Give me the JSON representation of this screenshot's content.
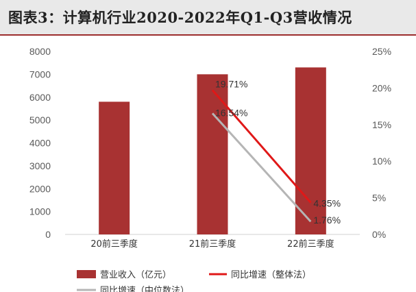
{
  "header": {
    "title": "图表3：计算机行业2020-2022年Q1-Q3营收情况"
  },
  "chart_data": {
    "type": "bar",
    "categories": [
      "20前三季度",
      "21前三季度",
      "22前三季度"
    ],
    "left_axis": {
      "min": 0,
      "max": 8000,
      "ticks": [
        "0",
        "1000",
        "2000",
        "3000",
        "4000",
        "5000",
        "6000",
        "7000",
        "8000"
      ]
    },
    "right_axis": {
      "min": 0,
      "max": 25,
      "ticks": [
        "0%",
        "5%",
        "10%",
        "15%",
        "20%",
        "25%"
      ]
    },
    "series": [
      {
        "name": "营业收入（亿元）",
        "kind": "bar",
        "axis": "left",
        "color": "#a83232",
        "values": [
          5800,
          7000,
          7300
        ]
      },
      {
        "name": "同比增速（整体法）",
        "kind": "line",
        "axis": "right",
        "color": "#e01818",
        "values": [
          null,
          19.71,
          4.35
        ],
        "labels": [
          "",
          "19.71%",
          "4.35%"
        ]
      },
      {
        "name": "同比增速（中位数法）",
        "kind": "line",
        "axis": "right",
        "color": "#b5b5b5",
        "values": [
          null,
          16.54,
          1.76
        ],
        "labels": [
          "",
          "16.54%",
          "1.76%"
        ]
      }
    ],
    "legend": "bottom-left"
  }
}
